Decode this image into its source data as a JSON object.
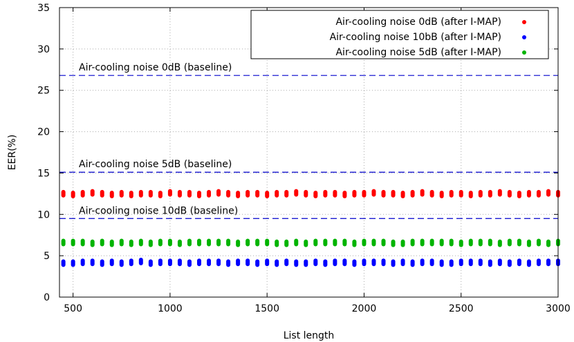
{
  "chart_data": {
    "type": "scatter",
    "title": "",
    "xlabel": "List length",
    "ylabel": "EER(%)",
    "xlim": [
      430,
      3000
    ],
    "ylim": [
      0,
      35
    ],
    "xticks": [
      500,
      1000,
      1500,
      2000,
      2500,
      3000
    ],
    "yticks": [
      0,
      5,
      10,
      15,
      20,
      25,
      30,
      35
    ],
    "grid": true,
    "legend_position": "top-right",
    "x_start": 450,
    "x_end": 3000,
    "x_step": 50,
    "series": [
      {
        "name": "Air-cooling noise 0dB (after I-MAP)",
        "color": "#ff0000",
        "values": [
          12.5,
          12.4,
          12.5,
          12.6,
          12.5,
          12.4,
          12.5,
          12.4,
          12.5,
          12.5,
          12.4,
          12.6,
          12.5,
          12.5,
          12.4,
          12.5,
          12.6,
          12.5,
          12.4,
          12.5,
          12.5,
          12.4,
          12.5,
          12.5,
          12.6,
          12.5,
          12.4,
          12.5,
          12.5,
          12.4,
          12.5,
          12.5,
          12.6,
          12.5,
          12.5,
          12.4,
          12.5,
          12.6,
          12.5,
          12.4,
          12.5,
          12.5,
          12.4,
          12.5,
          12.5,
          12.6,
          12.5,
          12.4,
          12.5,
          12.5,
          12.6,
          12.5
        ]
      },
      {
        "name": "Air-cooling noise 10bB (after I-MAP)",
        "color": "#0000ff",
        "values": [
          4.1,
          4.1,
          4.2,
          4.2,
          4.1,
          4.2,
          4.1,
          4.2,
          4.3,
          4.1,
          4.2,
          4.2,
          4.2,
          4.1,
          4.2,
          4.2,
          4.2,
          4.1,
          4.2,
          4.2,
          4.1,
          4.2,
          4.1,
          4.2,
          4.1,
          4.1,
          4.2,
          4.1,
          4.2,
          4.2,
          4.1,
          4.2,
          4.2,
          4.2,
          4.1,
          4.2,
          4.1,
          4.2,
          4.2,
          4.1,
          4.1,
          4.2,
          4.2,
          4.2,
          4.1,
          4.2,
          4.1,
          4.2,
          4.1,
          4.2,
          4.2,
          4.2
        ]
      },
      {
        "name": "Air-cooling noise 5dB (after I-MAP)",
        "color": "#00b400",
        "values": [
          6.6,
          6.6,
          6.6,
          6.5,
          6.6,
          6.5,
          6.6,
          6.5,
          6.6,
          6.5,
          6.6,
          6.6,
          6.5,
          6.6,
          6.6,
          6.6,
          6.6,
          6.6,
          6.5,
          6.6,
          6.6,
          6.6,
          6.5,
          6.5,
          6.6,
          6.5,
          6.6,
          6.6,
          6.6,
          6.6,
          6.5,
          6.6,
          6.6,
          6.6,
          6.5,
          6.5,
          6.6,
          6.6,
          6.6,
          6.6,
          6.6,
          6.5,
          6.6,
          6.6,
          6.6,
          6.5,
          6.6,
          6.6,
          6.5,
          6.6,
          6.5,
          6.6
        ]
      }
    ],
    "baselines": [
      {
        "label": "Air-cooling noise 0dB (baseline)",
        "y": 26.8,
        "color": "#0000cc"
      },
      {
        "label": "Air-cooling noise 5dB (baseline)",
        "y": 15.1,
        "color": "#0000cc"
      },
      {
        "label": "Air-cooling noise 10dB (baseline)",
        "y": 9.5,
        "color": "#0000cc"
      }
    ]
  }
}
